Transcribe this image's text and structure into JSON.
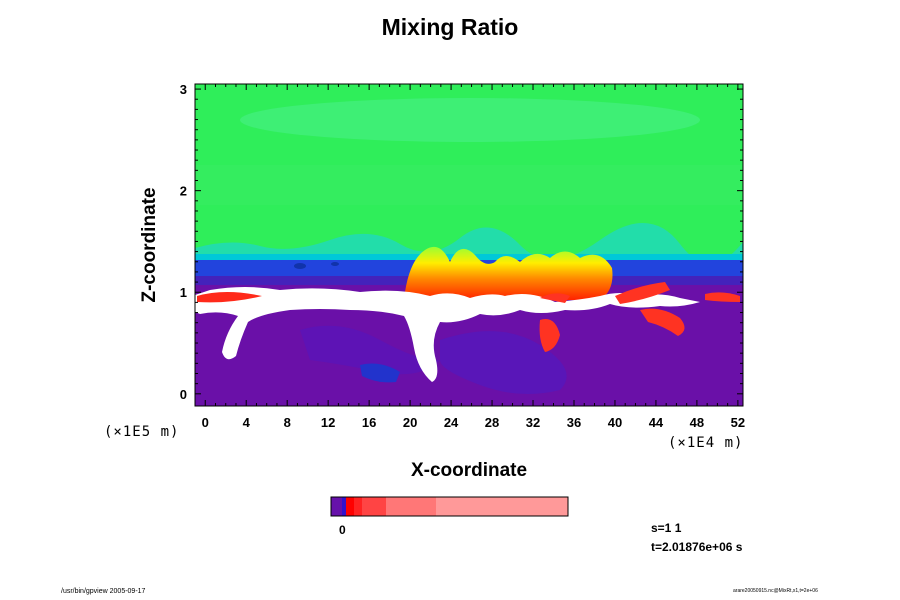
{
  "chart_data": {
    "type": "heatmap",
    "title": "Mixing Ratio",
    "xlabel": "X-coordinate",
    "ylabel": "Z-coordinate",
    "x_scale_note": "(×1E4 m)",
    "y_scale_note": "(×1E5 m)",
    "xlim": [
      -1,
      52.5
    ],
    "ylim": [
      -0.12,
      3.05
    ],
    "x_ticks": [
      0,
      4,
      8,
      12,
      16,
      20,
      24,
      28,
      32,
      36,
      40,
      44,
      48,
      52
    ],
    "y_ticks": [
      0,
      1,
      2,
      3
    ],
    "regions": {
      "upper_green": {
        "z_range": [
          1.42,
          3.05
        ],
        "color": "#33ee66"
      },
      "cyan_band": {
        "z_range": [
          1.36,
          1.42
        ],
        "color": "#00cccc"
      },
      "blue_band": {
        "z_range": [
          1.2,
          1.36
        ],
        "color": "#2244dd"
      },
      "indigo_band": {
        "z_range": [
          1.12,
          1.2
        ],
        "color": "#4422bb"
      },
      "lower_purple": {
        "z_range": [
          -0.12,
          1.12
        ],
        "color": "#6611aa"
      },
      "cloud_white": {
        "z_range": [
          0.85,
          1.05
        ],
        "color": "#ffffff"
      },
      "plume_yellow_red": {
        "x_range": [
          20,
          38
        ],
        "z_range": [
          0.95,
          1.45
        ],
        "color": "#ff3322"
      }
    },
    "colorbar": {
      "zero_label": "0",
      "colors": [
        "#6611aa",
        "#3311cc",
        "#ff0000",
        "#ff2222",
        "#ff4444",
        "#ff7777",
        "#ff9999"
      ]
    }
  },
  "info": {
    "step": "s=1 1",
    "time": "t=2.01876e+06 s"
  },
  "footer": {
    "left": "/usr/bin/gpview 2005-09-17",
    "right": "arare20050915.nc@MixRt,x1,t=2e+06"
  }
}
